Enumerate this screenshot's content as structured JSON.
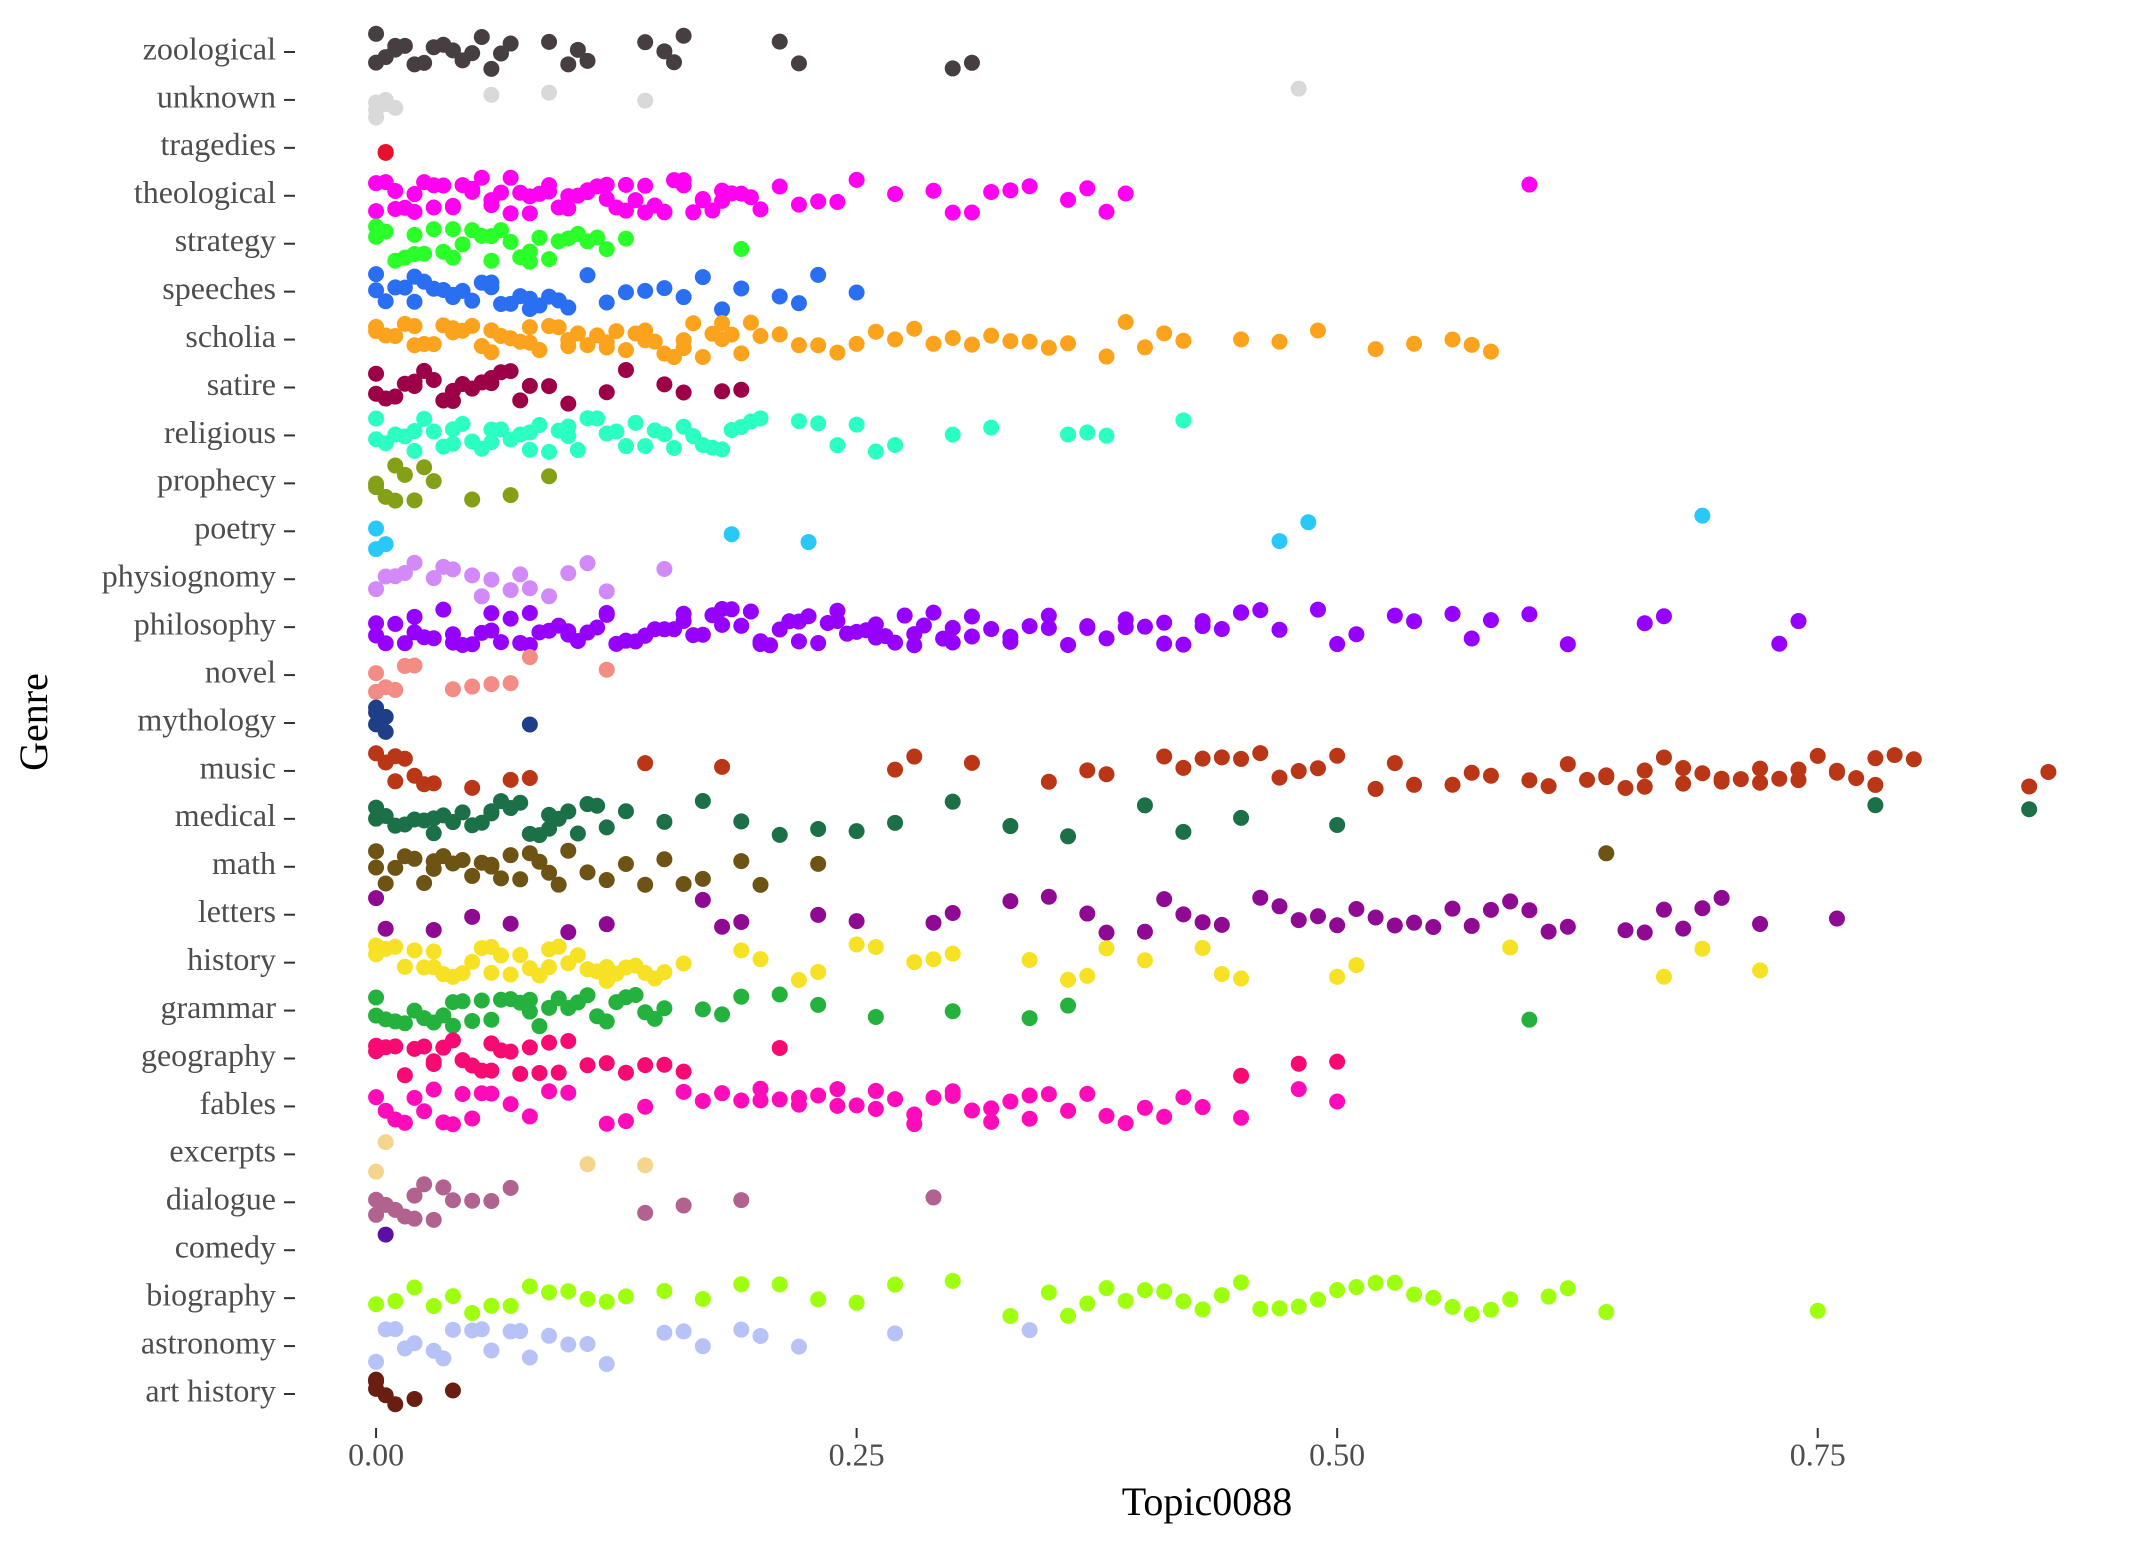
{
  "chart_data": {
    "type": "strip",
    "x_label": "Topic0088",
    "y_label": "Genre",
    "xlim": [
      -0.012,
      0.875
    ],
    "xticks": [
      {
        "value": 0,
        "label": "0.00"
      },
      {
        "value": 0.25,
        "label": "0.25"
      },
      {
        "value": 0.5,
        "label": "0.50"
      },
      {
        "value": 0.75,
        "label": "0.75"
      }
    ],
    "categories": [
      "zoological",
      "unknown",
      "tragedies",
      "theological",
      "strategy",
      "speeches",
      "scholia",
      "satire",
      "religious",
      "prophecy",
      "poetry",
      "physiognomy",
      "philosophy",
      "novel",
      "mythology",
      "music",
      "medical",
      "math",
      "letters",
      "history",
      "grammar",
      "geography",
      "fables",
      "excerpts",
      "dialogue",
      "comedy",
      "biography",
      "astronomy",
      "art history"
    ],
    "colors": [
      "#463e40",
      "#d9d9d9",
      "#e8112d",
      "#ff00f0",
      "#2aff2a",
      "#2a6ef2",
      "#fba31d",
      "#9c0047",
      "#2bffc2",
      "#84a017",
      "#29c8f7",
      "#d18af7",
      "#9600ff",
      "#f28c85",
      "#1e3e87",
      "#b93716",
      "#1c7048",
      "#6d5314",
      "#8f0a92",
      "#f7e124",
      "#24b13d",
      "#f70a71",
      "#ff0cba",
      "#f5d58e",
      "#b2628f",
      "#5a10a0",
      "#9eff0e",
      "#b7c3f7",
      "#6a1e12"
    ],
    "values": [
      [
        0,
        0,
        0.005,
        0.01,
        0.01,
        0.015,
        0.02,
        0.025,
        0.03,
        0.035,
        0.04,
        0.045,
        0.05,
        0.055,
        0.06,
        0.065,
        0.07,
        0.09,
        0.1,
        0.105,
        0.11,
        0.14,
        0.15,
        0.155,
        0.16,
        0.21,
        0.22,
        0.3,
        0.31
      ],
      [
        0,
        0,
        0,
        0.005,
        0.005,
        0.01,
        0.06,
        0.09,
        0.14,
        0.48
      ],
      [
        0.005,
        0.005
      ],
      [
        0,
        0.005,
        0.01,
        0.015,
        0.02,
        0.025,
        0.03,
        0.035,
        0.04,
        0.045,
        0.05,
        0.055,
        0.06,
        0.065,
        0.07,
        0.075,
        0.08,
        0.085,
        0.09,
        0.095,
        0.1,
        0.105,
        0.11,
        0.115,
        0.12,
        0.125,
        0.13,
        0.135,
        0.14,
        0.145,
        0.15,
        0.155,
        0.16,
        0.165,
        0.17,
        0.175,
        0.18,
        0.185,
        0.19,
        0.195,
        0.2,
        0,
        0.01,
        0.02,
        0.03,
        0.04,
        0.05,
        0.06,
        0.07,
        0.08,
        0.09,
        0.1,
        0.11,
        0.12,
        0.13,
        0.14,
        0.15,
        0.16,
        0.17,
        0.18,
        0.21,
        0.22,
        0.23,
        0.24,
        0.25,
        0.27,
        0.29,
        0.3,
        0.31,
        0.32,
        0.33,
        0.34,
        0.36,
        0.37,
        0.38,
        0.39,
        0.6
      ],
      [
        0,
        0.005,
        0.01,
        0.015,
        0.02,
        0.025,
        0.03,
        0.035,
        0.04,
        0.045,
        0.05,
        0.055,
        0.06,
        0.065,
        0.07,
        0.075,
        0.08,
        0.085,
        0.09,
        0.095,
        0.1,
        0.105,
        0.11,
        0.115,
        0.12,
        0,
        0.02,
        0.04,
        0.06,
        0.08,
        0.13,
        0.19
      ],
      [
        0,
        0.005,
        0.01,
        0.015,
        0.02,
        0.025,
        0.03,
        0.035,
        0.04,
        0.045,
        0.05,
        0.055,
        0.06,
        0.065,
        0.07,
        0.075,
        0.08,
        0.085,
        0.09,
        0.095,
        0.1,
        0,
        0.02,
        0.04,
        0.06,
        0.08,
        0.11,
        0.12,
        0.13,
        0.14,
        0.15,
        0.16,
        0.17,
        0.18,
        0.19,
        0.21,
        0.22,
        0.23,
        0.25
      ],
      [
        0,
        0.005,
        0.01,
        0.015,
        0.02,
        0.025,
        0.03,
        0.035,
        0.04,
        0.045,
        0.05,
        0.055,
        0.06,
        0.065,
        0.07,
        0.075,
        0.08,
        0.085,
        0.09,
        0.095,
        0.1,
        0.105,
        0.11,
        0.115,
        0.12,
        0.125,
        0.13,
        0.135,
        0.14,
        0.145,
        0.15,
        0.155,
        0.16,
        0.165,
        0.17,
        0.175,
        0.18,
        0.185,
        0.19,
        0.195,
        0.2,
        0.21,
        0.22,
        0.23,
        0.24,
        0.25,
        0,
        0.02,
        0.04,
        0.06,
        0.08,
        0.1,
        0.12,
        0.14,
        0.16,
        0.18,
        0.26,
        0.27,
        0.28,
        0.29,
        0.3,
        0.31,
        0.32,
        0.33,
        0.34,
        0.35,
        0.36,
        0.38,
        0.39,
        0.4,
        0.41,
        0.42,
        0.45,
        0.47,
        0.49,
        0.52,
        0.54,
        0.56,
        0.57,
        0.58
      ],
      [
        0,
        0.005,
        0.01,
        0.015,
        0.02,
        0.025,
        0.03,
        0.035,
        0.04,
        0.045,
        0.05,
        0.055,
        0.06,
        0.065,
        0.07,
        0.075,
        0.08,
        0,
        0.02,
        0.04,
        0.06,
        0.09,
        0.1,
        0.12,
        0.13,
        0.15,
        0.16,
        0.18,
        0.19
      ],
      [
        0,
        0.005,
        0.01,
        0.015,
        0.02,
        0.025,
        0.03,
        0.035,
        0.04,
        0.045,
        0.05,
        0.055,
        0.06,
        0.065,
        0.07,
        0.075,
        0.08,
        0.085,
        0.09,
        0.095,
        0.1,
        0.105,
        0.11,
        0.115,
        0.12,
        0.125,
        0.13,
        0.135,
        0.14,
        0.145,
        0.15,
        0.155,
        0.16,
        0.165,
        0.17,
        0.175,
        0.18,
        0.185,
        0.19,
        0.195,
        0.2,
        0,
        0.02,
        0.04,
        0.06,
        0.08,
        0.1,
        0.22,
        0.23,
        0.24,
        0.25,
        0.26,
        0.27,
        0.3,
        0.32,
        0.36,
        0.37,
        0.38,
        0.42
      ],
      [
        0,
        0.005,
        0.01,
        0.015,
        0.02,
        0.025,
        0.03,
        0,
        0.01,
        0.05,
        0.07,
        0.09
      ],
      [
        0,
        0,
        0.005,
        0.185,
        0.225,
        0.47,
        0.485,
        0.69
      ],
      [
        0,
        0.005,
        0.01,
        0.02,
        0.03,
        0.04,
        0.05,
        0.06,
        0.07,
        0.08,
        0.09,
        0.1,
        0.015,
        0.035,
        0.055,
        0.075,
        0.11,
        0.12,
        0.15
      ],
      [
        0,
        0.005,
        0.01,
        0.015,
        0.02,
        0.025,
        0.03,
        0.035,
        0.04,
        0.045,
        0.05,
        0.055,
        0.06,
        0.065,
        0.07,
        0.075,
        0.08,
        0.085,
        0.09,
        0.095,
        0.1,
        0.105,
        0.11,
        0.115,
        0.12,
        0.125,
        0.13,
        0.135,
        0.14,
        0.145,
        0.15,
        0.155,
        0.16,
        0.165,
        0.17,
        0.175,
        0.18,
        0.185,
        0.19,
        0.195,
        0.2,
        0.205,
        0.21,
        0.215,
        0.22,
        0.225,
        0.23,
        0.235,
        0.24,
        0.245,
        0.25,
        0.255,
        0.26,
        0.265,
        0.27,
        0.275,
        0.28,
        0.285,
        0.29,
        0.295,
        0.3,
        0,
        0.02,
        0.04,
        0.06,
        0.08,
        0.1,
        0.12,
        0.14,
        0.16,
        0.18,
        0.2,
        0.22,
        0.24,
        0.26,
        0.28,
        0.3,
        0.31,
        0.32,
        0.33,
        0.34,
        0.35,
        0.36,
        0.37,
        0.38,
        0.39,
        0.4,
        0.41,
        0.42,
        0.43,
        0.44,
        0.45,
        0.46,
        0.47,
        0.31,
        0.33,
        0.35,
        0.37,
        0.39,
        0.41,
        0.43,
        0.45,
        0.49,
        0.5,
        0.51,
        0.53,
        0.54,
        0.56,
        0.57,
        0.58,
        0.6,
        0.62,
        0.66,
        0.67,
        0.73,
        0.74
      ],
      [
        0,
        0.005,
        0.01,
        0.015,
        0.02,
        0,
        0.04,
        0.05,
        0.06,
        0.07,
        0.08,
        0.12
      ],
      [
        0,
        0,
        0,
        0.005,
        0.005,
        0.08
      ],
      [
        0,
        0.005,
        0.01,
        0.015,
        0.02,
        0.025,
        0.03,
        0.01,
        0.05,
        0.07,
        0.08,
        0.14,
        0.18,
        0.27,
        0.28,
        0.31,
        0.35,
        0.37,
        0.38,
        0.41,
        0.42,
        0.43,
        0.44,
        0.45,
        0.46,
        0.47,
        0.48,
        0.49,
        0.5,
        0.52,
        0.53,
        0.54,
        0.56,
        0.57,
        0.58,
        0.6,
        0.61,
        0.62,
        0.63,
        0.64,
        0.65,
        0.66,
        0.67,
        0.68,
        0.69,
        0.7,
        0.71,
        0.72,
        0.73,
        0.74,
        0.75,
        0.76,
        0.77,
        0.78,
        0.79,
        0.8,
        0.64,
        0.66,
        0.68,
        0.7,
        0.72,
        0.74,
        0.76,
        0.78,
        0.86,
        0.87
      ],
      [
        0,
        0.005,
        0.01,
        0.015,
        0.02,
        0.025,
        0.03,
        0.035,
        0.04,
        0.045,
        0.05,
        0.055,
        0.06,
        0.065,
        0.07,
        0.075,
        0.08,
        0.085,
        0.09,
        0.095,
        0.1,
        0.105,
        0.11,
        0.115,
        0.12,
        0,
        0.03,
        0.06,
        0.09,
        0.13,
        0.15,
        0.17,
        0.19,
        0.21,
        0.23,
        0.25,
        0.27,
        0.3,
        0.33,
        0.36,
        0.4,
        0.42,
        0.45,
        0.5,
        0.78,
        0.86
      ],
      [
        0,
        0.005,
        0.01,
        0.015,
        0.02,
        0.025,
        0.03,
        0.035,
        0.04,
        0.045,
        0.05,
        0.055,
        0.06,
        0.065,
        0.07,
        0.075,
        0.08,
        0.085,
        0.09,
        0.095,
        0.1,
        0,
        0.03,
        0.06,
        0.11,
        0.12,
        0.13,
        0.14,
        0.15,
        0.16,
        0.17,
        0.19,
        0.2,
        0.23,
        0.64
      ],
      [
        0,
        0.005,
        0.03,
        0.05,
        0.07,
        0.1,
        0.12,
        0.17,
        0.18,
        0.19,
        0.23,
        0.25,
        0.29,
        0.3,
        0.33,
        0.35,
        0.37,
        0.38,
        0.4,
        0.41,
        0.42,
        0.43,
        0.44,
        0.46,
        0.47,
        0.48,
        0.49,
        0.5,
        0.51,
        0.52,
        0.53,
        0.54,
        0.55,
        0.56,
        0.57,
        0.58,
        0.59,
        0.6,
        0.61,
        0.62,
        0.65,
        0.66,
        0.67,
        0.68,
        0.69,
        0.7,
        0.72,
        0.76
      ],
      [
        0,
        0.005,
        0.01,
        0.015,
        0.02,
        0.025,
        0.03,
        0.035,
        0.04,
        0.045,
        0.05,
        0.055,
        0.06,
        0.065,
        0.07,
        0.075,
        0.08,
        0.085,
        0.09,
        0.095,
        0.1,
        0.105,
        0.11,
        0.115,
        0.12,
        0.125,
        0.13,
        0.135,
        0.14,
        0.145,
        0.15,
        0,
        0.03,
        0.06,
        0.09,
        0.12,
        0.16,
        0.19,
        0.2,
        0.22,
        0.23,
        0.25,
        0.26,
        0.28,
        0.29,
        0.3,
        0.34,
        0.36,
        0.37,
        0.38,
        0.4,
        0.43,
        0.44,
        0.45,
        0.5,
        0.51,
        0.59,
        0.67,
        0.69,
        0.72
      ],
      [
        0,
        0.005,
        0.01,
        0.015,
        0.02,
        0.025,
        0.03,
        0.035,
        0.04,
        0.045,
        0.05,
        0.055,
        0.06,
        0.065,
        0.07,
        0.075,
        0.08,
        0.085,
        0.09,
        0.095,
        0.1,
        0.105,
        0.11,
        0.115,
        0.12,
        0.125,
        0.13,
        0.135,
        0.14,
        0.145,
        0.15,
        0,
        0.04,
        0.08,
        0.17,
        0.18,
        0.19,
        0.21,
        0.23,
        0.26,
        0.3,
        0.34,
        0.36,
        0.6
      ],
      [
        0,
        0.005,
        0.01,
        0.015,
        0.02,
        0.025,
        0.03,
        0.035,
        0.04,
        0.045,
        0.05,
        0.055,
        0.06,
        0.065,
        0.07,
        0.075,
        0.08,
        0.085,
        0.09,
        0.095,
        0.1,
        0,
        0.03,
        0.06,
        0.11,
        0.12,
        0.13,
        0.14,
        0.15,
        0.16,
        0.21,
        0.45,
        0.48,
        0.5
      ],
      [
        0,
        0.005,
        0.01,
        0.015,
        0.02,
        0.025,
        0.03,
        0.035,
        0.04,
        0.045,
        0.05,
        0.055,
        0.06,
        0.07,
        0.08,
        0.09,
        0.1,
        0.12,
        0.13,
        0.14,
        0.16,
        0.17,
        0.18,
        0.19,
        0.2,
        0.21,
        0.22,
        0.23,
        0.24,
        0.25,
        0.26,
        0.27,
        0.28,
        0.29,
        0.3,
        0.31,
        0.32,
        0.33,
        0.34,
        0.35,
        0.36,
        0.37,
        0.38,
        0.39,
        0.4,
        0.41,
        0.42,
        0.43,
        0.45,
        0.48,
        0.5,
        0.2,
        0.22,
        0.24,
        0.26,
        0.28,
        0.3,
        0.32,
        0.34
      ],
      [
        0,
        0.005,
        0.11,
        0.14
      ],
      [
        0,
        0.005,
        0.01,
        0.015,
        0.02,
        0.025,
        0.03,
        0.035,
        0.04,
        0,
        0.02,
        0.05,
        0.06,
        0.07,
        0.14,
        0.16,
        0.19,
        0.29
      ],
      [
        0.005
      ],
      [
        0,
        0.01,
        0.02,
        0.03,
        0.04,
        0.05,
        0.06,
        0.07,
        0.08,
        0.09,
        0.1,
        0.11,
        0.12,
        0.13,
        0.15,
        0.17,
        0.19,
        0.21,
        0.23,
        0.25,
        0.27,
        0.3,
        0.33,
        0.35,
        0.36,
        0.37,
        0.38,
        0.39,
        0.4,
        0.41,
        0.42,
        0.43,
        0.44,
        0.45,
        0.46,
        0.47,
        0.48,
        0.49,
        0.5,
        0.51,
        0.52,
        0.53,
        0.54,
        0.55,
        0.56,
        0.57,
        0.58,
        0.59,
        0.61,
        0.62,
        0.64,
        0.75
      ],
      [
        0,
        0.005,
        0.01,
        0.02,
        0.03,
        0.04,
        0.05,
        0.06,
        0.07,
        0.08,
        0.09,
        0.1,
        0.11,
        0.12,
        0.015,
        0.035,
        0.055,
        0.075,
        0.15,
        0.16,
        0.17,
        0.19,
        0.2,
        0.22,
        0.27,
        0.34
      ],
      [
        0,
        0,
        0,
        0.005,
        0.01,
        0.02,
        0.04
      ]
    ]
  }
}
